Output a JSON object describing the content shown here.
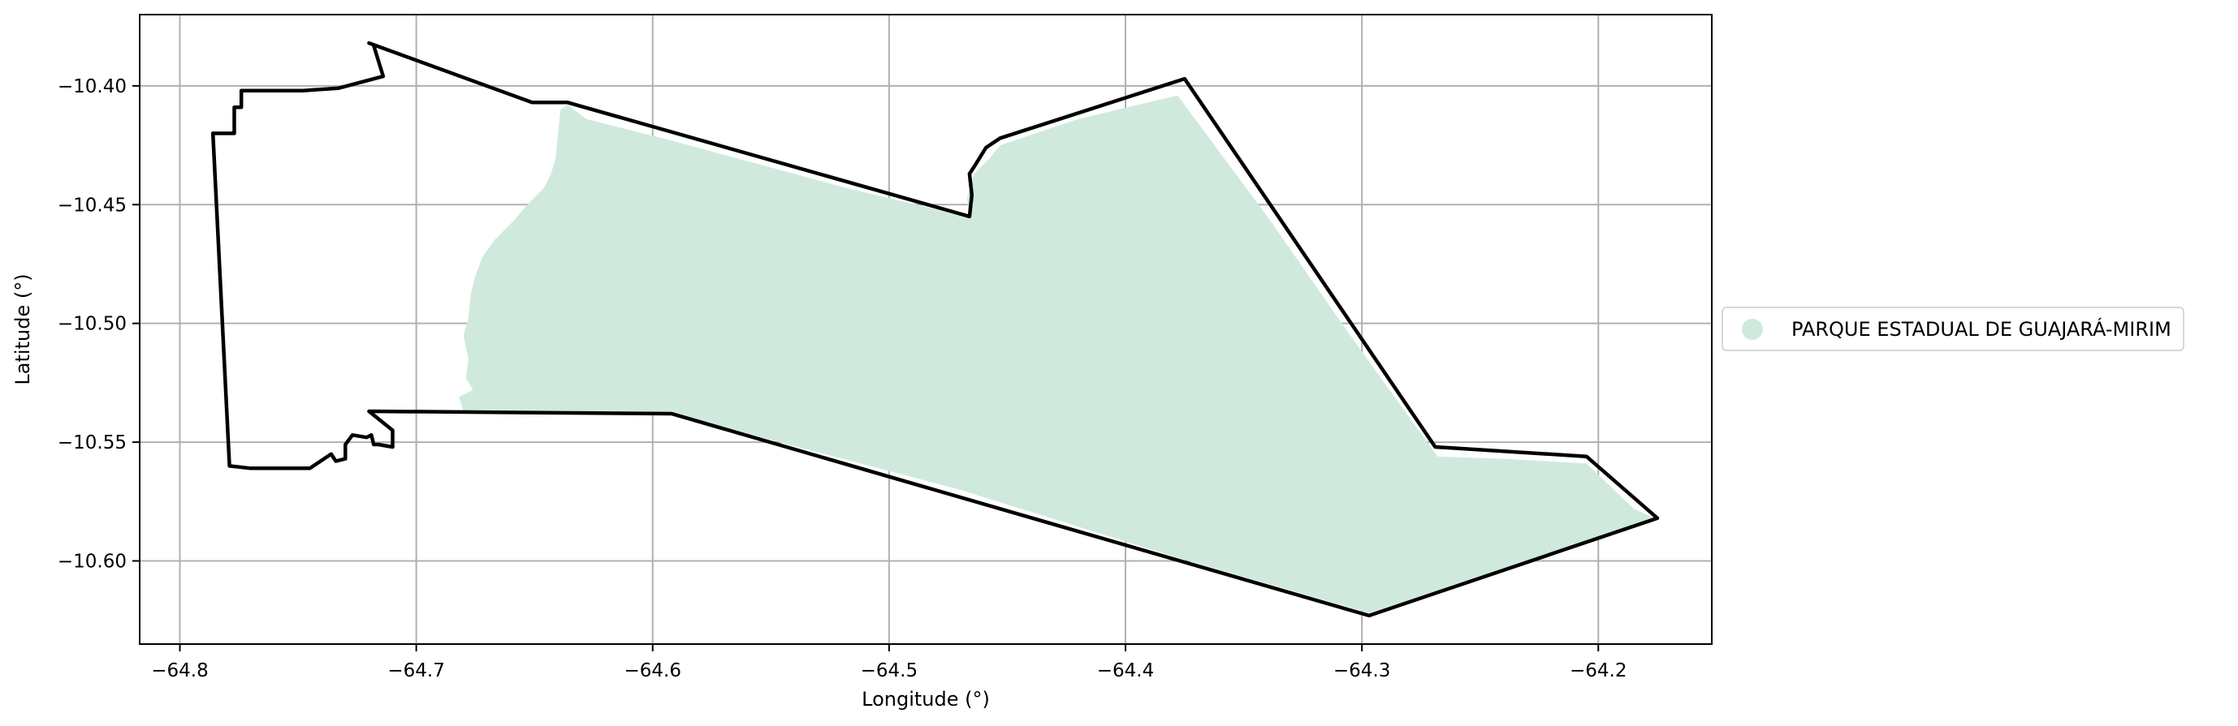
{
  "chart_data": {
    "type": "map",
    "xlabel": "Longitude (°)",
    "ylabel": "Latitude (°)",
    "xlim": [
      -64.817,
      -64.152
    ],
    "ylim": [
      -10.635,
      -10.37
    ],
    "xticks": [
      -64.8,
      -64.7,
      -64.6,
      -64.5,
      -64.4,
      -64.3,
      -64.2
    ],
    "xtick_labels": [
      "−64.8",
      "−64.7",
      "−64.6",
      "−64.5",
      "−64.4",
      "−64.3",
      "−64.2"
    ],
    "yticks": [
      -10.4,
      -10.45,
      -10.5,
      -10.55,
      -10.6
    ],
    "ytick_labels": [
      "−10.40",
      "−10.45",
      "−10.50",
      "−10.55",
      "−10.60"
    ],
    "grid": true,
    "legend": {
      "placement": "outside-right",
      "entries": [
        {
          "label": "PARQUE ESTADUAL DE GUAJARÁ-MIRIM",
          "color": "#cfeadd",
          "marker": "circle"
        }
      ]
    },
    "colors": {
      "fill": "#cfeadd",
      "outline": "#000000",
      "grid": "#b0b0b0"
    },
    "filled_area": {
      "name": "PARQUE ESTADUAL DE GUAJARÁ-MIRIM",
      "coordinates": [
        [
          -64.639,
          -10.41
        ],
        [
          -64.636,
          -10.408
        ],
        [
          -64.628,
          -10.414
        ],
        [
          -64.592,
          -10.423
        ],
        [
          -64.555,
          -10.433
        ],
        [
          -64.518,
          -10.443
        ],
        [
          -64.48,
          -10.452
        ],
        [
          -64.466,
          -10.456
        ],
        [
          -64.467,
          -10.447
        ],
        [
          -64.464,
          -10.437
        ],
        [
          -64.458,
          -10.431
        ],
        [
          -64.453,
          -10.425
        ],
        [
          -64.42,
          -10.414
        ],
        [
          -64.378,
          -10.404
        ],
        [
          -64.34,
          -10.455
        ],
        [
          -64.305,
          -10.505
        ],
        [
          -64.268,
          -10.556
        ],
        [
          -64.24,
          -10.557
        ],
        [
          -64.205,
          -10.559
        ],
        [
          -64.185,
          -10.578
        ],
        [
          -64.176,
          -10.582
        ],
        [
          -64.225,
          -10.598
        ],
        [
          -64.297,
          -10.622
        ],
        [
          -64.38,
          -10.598
        ],
        [
          -64.47,
          -10.57
        ],
        [
          -64.55,
          -10.549
        ],
        [
          -64.592,
          -10.538
        ],
        [
          -64.68,
          -10.537
        ],
        [
          -64.682,
          -10.531
        ],
        [
          -64.676,
          -10.528
        ],
        [
          -64.679,
          -10.523
        ],
        [
          -64.678,
          -10.515
        ],
        [
          -64.68,
          -10.505
        ],
        [
          -64.678,
          -10.498
        ],
        [
          -64.677,
          -10.488
        ],
        [
          -64.675,
          -10.48
        ],
        [
          -64.672,
          -10.472
        ],
        [
          -64.667,
          -10.465
        ],
        [
          -64.663,
          -10.461
        ],
        [
          -64.658,
          -10.456
        ],
        [
          -64.654,
          -10.451
        ],
        [
          -64.65,
          -10.447
        ],
        [
          -64.646,
          -10.443
        ],
        [
          -64.643,
          -10.437
        ],
        [
          -64.641,
          -10.43
        ],
        [
          -64.64,
          -10.42
        ]
      ]
    },
    "outline_boundary": {
      "coordinates": [
        [
          -64.718,
          -10.383
        ],
        [
          -64.714,
          -10.396
        ],
        [
          -64.733,
          -10.401
        ],
        [
          -64.748,
          -10.402
        ],
        [
          -64.774,
          -10.402
        ],
        [
          -64.774,
          -10.409
        ],
        [
          -64.777,
          -10.409
        ],
        [
          -64.777,
          -10.42
        ],
        [
          -64.786,
          -10.42
        ],
        [
          -64.779,
          -10.56
        ],
        [
          -64.77,
          -10.561
        ],
        [
          -64.745,
          -10.561
        ],
        [
          -64.736,
          -10.555
        ],
        [
          -64.734,
          -10.558
        ],
        [
          -64.73,
          -10.557
        ],
        [
          -64.73,
          -10.551
        ],
        [
          -64.727,
          -10.547
        ],
        [
          -64.721,
          -10.548
        ],
        [
          -64.719,
          -10.547
        ],
        [
          -64.718,
          -10.551
        ],
        [
          -64.716,
          -10.551
        ],
        [
          -64.71,
          -10.552
        ],
        [
          -64.71,
          -10.545
        ],
        [
          -64.72,
          -10.537
        ],
        [
          -64.592,
          -10.538
        ],
        [
          -64.297,
          -10.623
        ],
        [
          -64.175,
          -10.582
        ],
        [
          -64.205,
          -10.556
        ],
        [
          -64.269,
          -10.552
        ],
        [
          -64.375,
          -10.397
        ],
        [
          -64.453,
          -10.422
        ],
        [
          -64.459,
          -10.426
        ],
        [
          -64.464,
          -10.434
        ],
        [
          -64.466,
          -10.437
        ],
        [
          -64.465,
          -10.446
        ],
        [
          -64.466,
          -10.455
        ],
        [
          -64.636,
          -10.407
        ],
        [
          -64.651,
          -10.407
        ],
        [
          -64.72,
          -10.382
        ]
      ]
    }
  }
}
